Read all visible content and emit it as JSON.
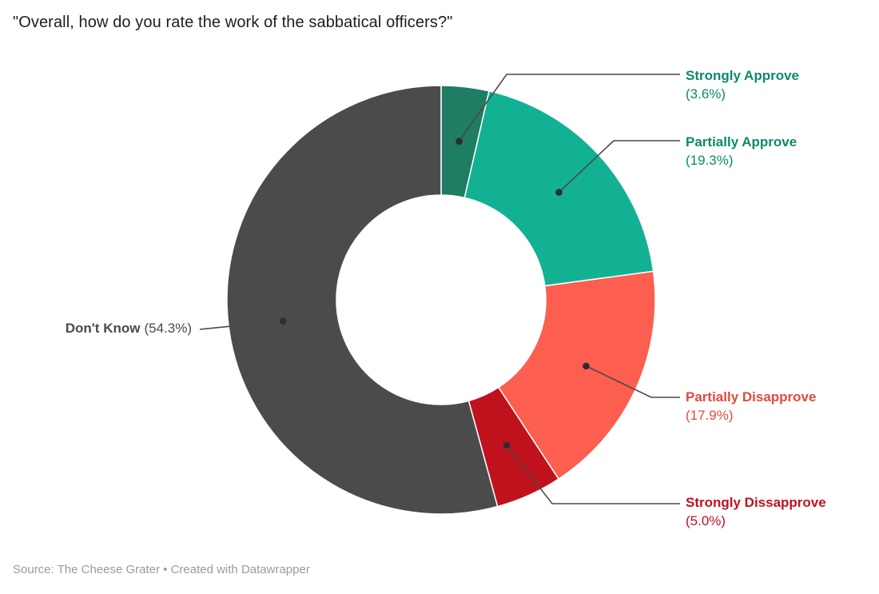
{
  "title": "\"Overall, how do you rate the work of the sabbatical officers?\"",
  "footer": "Source: The Cheese Grater • Created with Datawrapper",
  "chart_data": {
    "type": "pie",
    "subtype": "donut",
    "title": "\"Overall, how do you rate the work of the sabbatical officers?\"",
    "unit": "%",
    "direction": "clockwise",
    "start_angle_deg": 0,
    "donut_hole_ratio": 0.49,
    "legend_position": "outside-callouts",
    "source": "The Cheese Grater",
    "tool": "Datawrapper",
    "segments": [
      {
        "label": "Strongly Approve",
        "value": 3.6,
        "pct_label": "(3.6%)",
        "color": "#1e7d63",
        "label_color": "#0d8a6a"
      },
      {
        "label": "Partially Approve",
        "value": 19.3,
        "pct_label": "(19.3%)",
        "color": "#13b193",
        "label_color": "#0d8a6a"
      },
      {
        "label": "Partially Disapprove",
        "value": 17.9,
        "pct_label": "(17.9%)",
        "color": "#fc5e50",
        "label_color": "#e2493d"
      },
      {
        "label": "Strongly Dissapprove",
        "value": 5.0,
        "pct_label": "(5.0%)",
        "color": "#bf121d",
        "label_color": "#c0121f"
      },
      {
        "label": "Don't Know",
        "value": 54.3,
        "pct_label": "(54.3%)",
        "color": "#4b4b4b",
        "label_color": "#4a4a4a"
      }
    ],
    "callout_line_color": "#4a4a4a",
    "callout_dot_color": "#2e2e2e"
  }
}
